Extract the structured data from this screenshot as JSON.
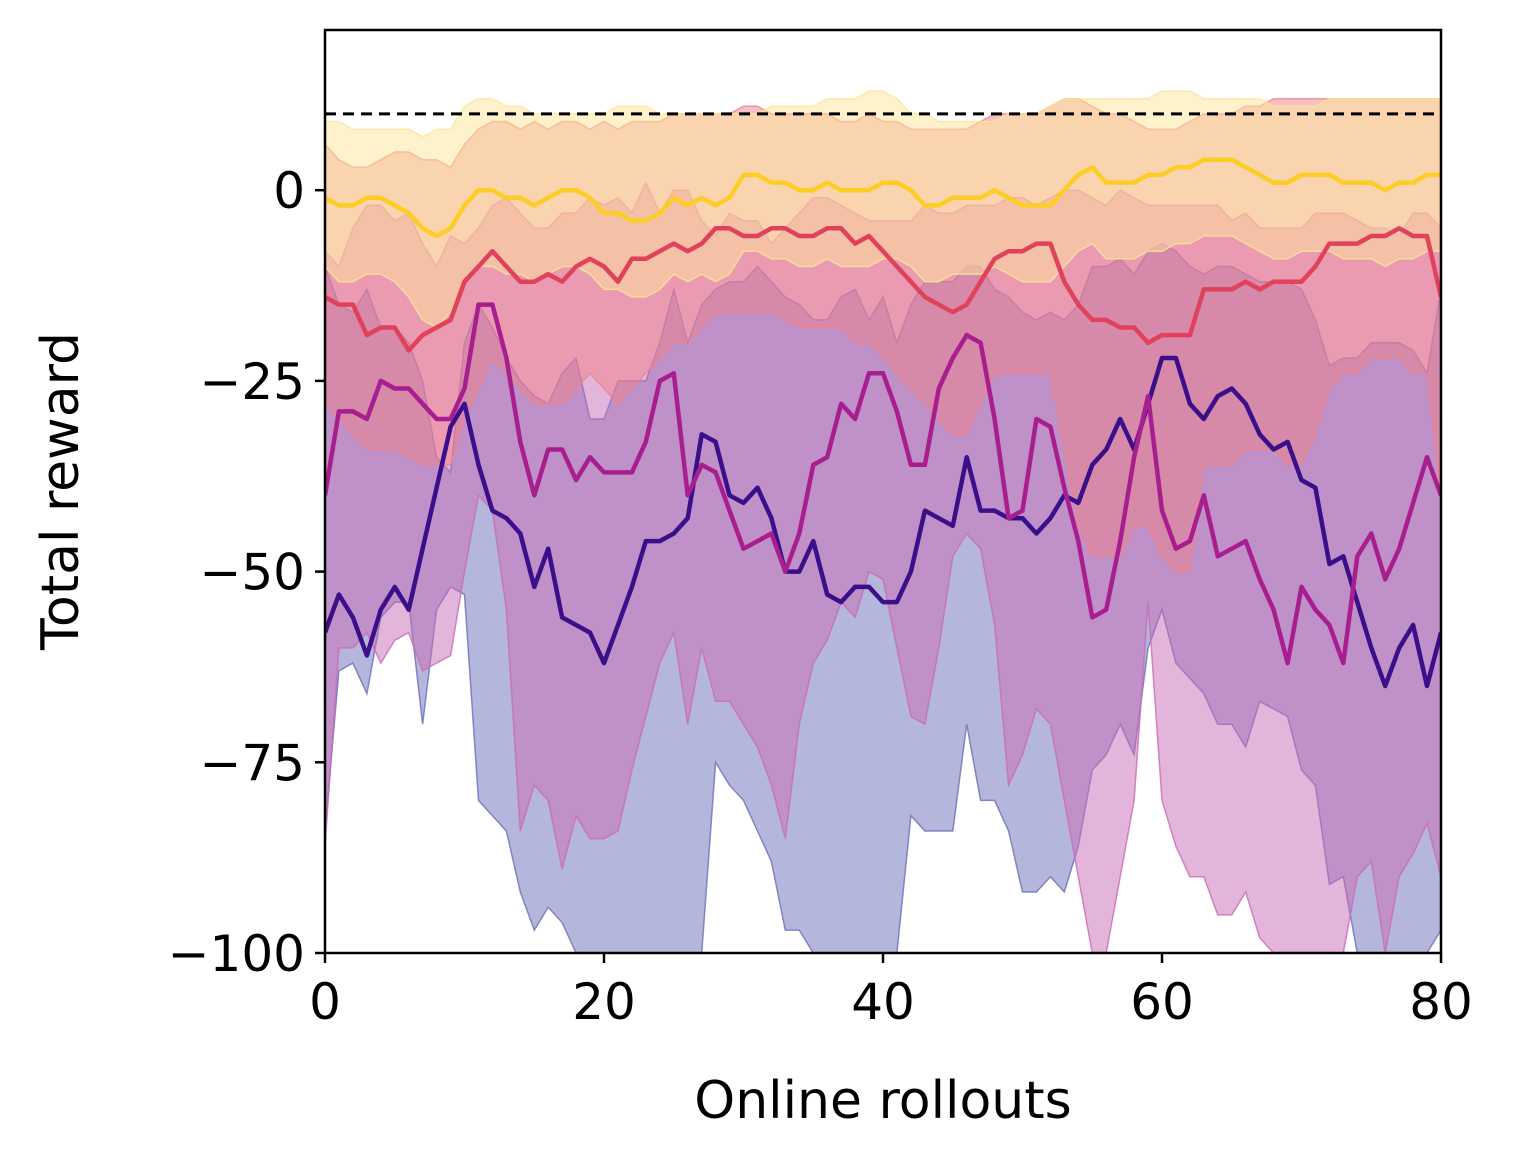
{
  "chart_data": {
    "type": "line",
    "title": "",
    "xlabel": "Online rollouts",
    "ylabel": "Total reward",
    "xlim": [
      0,
      80
    ],
    "ylim": [
      -100,
      21
    ],
    "xticks": [
      0,
      20,
      40,
      60,
      80
    ],
    "yticks": [
      -100,
      -75,
      -50,
      -25,
      0
    ],
    "xtick_labels": [
      "0",
      "20",
      "40",
      "60",
      "80"
    ],
    "ytick_labels": [
      "−100",
      "−75",
      "−50",
      "−25",
      "0"
    ],
    "grid": false,
    "legend": "none",
    "reference_line": {
      "y": 10,
      "style": "dashed",
      "color": "#000000"
    },
    "x": [
      0,
      1,
      2,
      3,
      4,
      5,
      6,
      7,
      8,
      9,
      10,
      11,
      12,
      13,
      14,
      15,
      16,
      17,
      18,
      19,
      20,
      21,
      22,
      23,
      24,
      25,
      26,
      27,
      28,
      29,
      30,
      31,
      32,
      33,
      34,
      35,
      36,
      37,
      38,
      39,
      40,
      41,
      42,
      43,
      44,
      45,
      46,
      47,
      48,
      49,
      50,
      51,
      52,
      53,
      54,
      55,
      56,
      57,
      58,
      59,
      60,
      61,
      62,
      63,
      64,
      65,
      66,
      67,
      68,
      69,
      70,
      71,
      72,
      73,
      74,
      75,
      76,
      77,
      78,
      79,
      80
    ],
    "series": [
      {
        "color": "#3b0f8a",
        "band_color": "#6a6fb8",
        "mean": [
          -58,
          -53,
          -56,
          -61,
          -55,
          -52,
          -55,
          -47,
          -39,
          -31,
          -28,
          -36,
          -42,
          -43,
          -45,
          -52,
          -47,
          -56,
          -57,
          -58,
          -62,
          -57,
          -52,
          -46,
          -46,
          -45,
          -43,
          -32,
          -33,
          -40,
          -41,
          -39,
          -43,
          -50,
          -50,
          -46,
          -53,
          -54,
          -52,
          -52,
          -54,
          -54,
          -50,
          -42,
          -43,
          -44,
          -35,
          -42,
          -42,
          -43,
          -43,
          -45,
          -43,
          -40,
          -41,
          -36,
          -34,
          -30,
          -34,
          -28,
          -22,
          -22,
          -28,
          -30,
          -27,
          -26,
          -28,
          -32,
          -34,
          -33,
          -38,
          -39,
          -49,
          -48,
          -54,
          -60,
          -65,
          -60,
          -57,
          -65,
          -58
        ],
        "upper": [
          -10,
          -15,
          -16,
          -13,
          -18,
          -18,
          -20,
          -25,
          -35,
          -37,
          -20,
          -15,
          -18,
          -22,
          -25,
          -27,
          -28,
          -24,
          -22,
          -30,
          -30,
          -25,
          -25,
          -25,
          -20,
          -13,
          -20,
          -15,
          -13,
          -12,
          -12,
          -10,
          -12,
          -14,
          -15,
          -17,
          -17,
          -14,
          -13,
          -17,
          -14,
          -20,
          -15,
          -12,
          -12,
          -12,
          -10,
          -10,
          -13,
          -14,
          -16,
          -17,
          -16,
          -17,
          -15,
          -10,
          -10,
          -9,
          -11,
          -8,
          -7,
          -8,
          -10,
          -11,
          -10,
          -10,
          -11,
          -12,
          -12,
          -12,
          -13,
          -17,
          -23,
          -22,
          -22,
          -20,
          -20,
          -20,
          -21,
          -24,
          -13
        ],
        "lower": [
          -84,
          -63,
          -62,
          -66,
          -56,
          -54,
          -54,
          -70,
          -55,
          -52,
          -53,
          -80,
          -82,
          -84,
          -92,
          -97,
          -94,
          -96,
          -100,
          -100,
          -100,
          -100,
          -100,
          -100,
          -100,
          -100,
          -100,
          -100,
          -75,
          -78,
          -80,
          -84,
          -88,
          -97,
          -97,
          -100,
          -100,
          -100,
          -100,
          -100,
          -100,
          -100,
          -82,
          -84,
          -84,
          -84,
          -70,
          -80,
          -80,
          -84,
          -92,
          -92,
          -90,
          -92,
          -86,
          -76,
          -74,
          -70,
          -74,
          -60,
          -55,
          -62,
          -64,
          -66,
          -70,
          -70,
          -73,
          -67,
          -68,
          -69,
          -76,
          -78,
          -91,
          -90,
          -100,
          -100,
          -100,
          -100,
          -100,
          -100,
          -97
        ]
      },
      {
        "color": "#a81e8e",
        "band_color": "#c96bb6",
        "mean": [
          -40,
          -29,
          -29,
          -30,
          -25,
          -26,
          -26,
          -28,
          -30,
          -30,
          -26,
          -15,
          -15,
          -22,
          -33,
          -40,
          -34,
          -34,
          -38,
          -35,
          -37,
          -37,
          -37,
          -33,
          -25,
          -24,
          -40,
          -36,
          -37,
          -42,
          -47,
          -46,
          -45,
          -50,
          -45,
          -36,
          -35,
          -28,
          -30,
          -24,
          -24,
          -29,
          -36,
          -36,
          -26,
          -22,
          -19,
          -20,
          -30,
          -43,
          -42,
          -30,
          -31,
          -39,
          -46,
          -56,
          -55,
          -46,
          -35,
          -27,
          -42,
          -47,
          -46,
          -40,
          -48,
          -47,
          -46,
          -51,
          -55,
          -62,
          -52,
          -55,
          -57,
          -62,
          -48,
          -45,
          -51,
          -47,
          -41,
          -35,
          -40
        ],
        "upper": [
          -8,
          -10,
          -5,
          -2,
          -2,
          -4,
          -3,
          -7,
          -10,
          -6,
          -7,
          -5,
          -2,
          -1,
          -3,
          -5,
          -5,
          -3,
          -3,
          -1,
          -2,
          -1,
          -3,
          1,
          -3,
          0,
          0,
          -4,
          -6,
          -3,
          -4,
          -4,
          -7,
          -5,
          -3,
          -1,
          -1,
          -2,
          -3,
          -4,
          -4,
          -4,
          -4,
          -2,
          -3,
          -3,
          -2,
          -2,
          -2,
          -1,
          -1,
          -2,
          -1,
          0,
          0,
          -1,
          -2,
          0,
          -1,
          -2,
          -2,
          -2,
          -2,
          -2,
          -2,
          -4,
          -3,
          -5,
          -5,
          -5,
          -5,
          -3,
          -3,
          -3,
          -4,
          -5,
          -5,
          -6,
          -3,
          -3,
          -5
        ],
        "lower": [
          -86,
          -60,
          -60,
          -58,
          -62,
          -59,
          -58,
          -63,
          -62,
          -61,
          -50,
          -40,
          -42,
          -55,
          -84,
          -78,
          -80,
          -89,
          -82,
          -85,
          -85,
          -84,
          -76,
          -69,
          -62,
          -58,
          -70,
          -60,
          -67,
          -67,
          -70,
          -73,
          -78,
          -85,
          -70,
          -62,
          -59,
          -54,
          -56,
          -50,
          -51,
          -60,
          -69,
          -70,
          -60,
          -48,
          -45,
          -47,
          -57,
          -78,
          -74,
          -68,
          -70,
          -80,
          -90,
          -100,
          -100,
          -90,
          -80,
          -54,
          -80,
          -86,
          -90,
          -90,
          -95,
          -95,
          -92,
          -98,
          -100,
          -100,
          -100,
          -100,
          -100,
          -100,
          -90,
          -88,
          -100,
          -90,
          -87,
          -83,
          -90
        ]
      },
      {
        "color": "#e0425c",
        "band_color": "#f0828a",
        "mean": [
          -14,
          -15,
          -15,
          -19,
          -18,
          -18,
          -21,
          -19,
          -18,
          -17,
          -12,
          -10,
          -8,
          -10,
          -12,
          -12,
          -11,
          -12,
          -10,
          -9,
          -10,
          -12,
          -9,
          -9,
          -8,
          -7,
          -8,
          -7,
          -5,
          -5,
          -6,
          -6,
          -5,
          -5,
          -6,
          -6,
          -5,
          -5,
          -7,
          -6,
          -8,
          -10,
          -12,
          -14,
          -15,
          -16,
          -15,
          -12,
          -9,
          -8,
          -8,
          -7,
          -7,
          -12,
          -15,
          -17,
          -17,
          -18,
          -18,
          -20,
          -19,
          -19,
          -19,
          -13,
          -13,
          -13,
          -12,
          -13,
          -12,
          -12,
          -12,
          -10,
          -7,
          -7,
          -7,
          -6,
          -6,
          -5,
          -6,
          -6,
          -14
        ],
        "upper": [
          6,
          4,
          3,
          3,
          4,
          5,
          5,
          4,
          4,
          3,
          6,
          8,
          9,
          9,
          8,
          9,
          8,
          9,
          9,
          8,
          9,
          8,
          9,
          9,
          9,
          10,
          10,
          10,
          10,
          10,
          11,
          11,
          10,
          10,
          10,
          10,
          10,
          9,
          9,
          10,
          9,
          9,
          8,
          8,
          8,
          8,
          8,
          9,
          10,
          10,
          10,
          10,
          11,
          12,
          12,
          11,
          10,
          10,
          9,
          8,
          8,
          8,
          9,
          10,
          10,
          10,
          11,
          11,
          12,
          12,
          12,
          12,
          12,
          12,
          12,
          12,
          12,
          12,
          12,
          12,
          12
        ],
        "lower": [
          -28,
          -30,
          -32,
          -34,
          -34,
          -34,
          -35,
          -36,
          -36,
          -36,
          -30,
          -26,
          -22,
          -24,
          -26,
          -28,
          -28,
          -28,
          -26,
          -24,
          -26,
          -28,
          -26,
          -24,
          -22,
          -20,
          -20,
          -18,
          -16,
          -16,
          -16,
          -16,
          -16,
          -17,
          -18,
          -18,
          -18,
          -18,
          -20,
          -20,
          -22,
          -24,
          -26,
          -28,
          -30,
          -32,
          -32,
          -28,
          -24,
          -24,
          -24,
          -24,
          -24,
          -34,
          -44,
          -48,
          -48,
          -48,
          -44,
          -44,
          -48,
          -50,
          -50,
          -36,
          -36,
          -36,
          -34,
          -34,
          -34,
          -36,
          -36,
          -32,
          -26,
          -24,
          -24,
          -22,
          -22,
          -22,
          -24,
          -24,
          -40
        ]
      },
      {
        "color": "#fccd25",
        "band_color": "#fde59a",
        "mean": [
          -1,
          -2,
          -2,
          -1,
          -1,
          -2,
          -3,
          -5,
          -6,
          -5,
          -2,
          0,
          0,
          -1,
          -1,
          -2,
          -1,
          0,
          0,
          -1,
          -3,
          -3,
          -4,
          -4,
          -3,
          -1,
          -2,
          -1,
          -2,
          -1,
          2,
          2,
          1,
          1,
          0,
          0,
          1,
          0,
          0,
          0,
          1,
          1,
          0,
          -2,
          -2,
          -1,
          -1,
          -1,
          0,
          -1,
          -2,
          -2,
          -2,
          0,
          2,
          3,
          1,
          1,
          1,
          2,
          2,
          3,
          3,
          4,
          4,
          4,
          3,
          2,
          1,
          1,
          2,
          2,
          2,
          1,
          1,
          1,
          0,
          1,
          1,
          2,
          2
        ],
        "upper": [
          9,
          9,
          8,
          8,
          8,
          8,
          8,
          7,
          8,
          8,
          11,
          12,
          12,
          11,
          11,
          10,
          10,
          10,
          10,
          10,
          10,
          11,
          11,
          11,
          10,
          10,
          10,
          10,
          10,
          10,
          10,
          10,
          11,
          11,
          11,
          11,
          12,
          12,
          12,
          13,
          13,
          12,
          10,
          10,
          9,
          9,
          9,
          9,
          9,
          10,
          10,
          10,
          11,
          12,
          12,
          12,
          12,
          12,
          12,
          12,
          13,
          13,
          13,
          12,
          12,
          12,
          12,
          12,
          11,
          11,
          11,
          11,
          12,
          12,
          12,
          12,
          12,
          12,
          12,
          12,
          12
        ],
        "lower": [
          -10,
          -12,
          -12,
          -11,
          -11,
          -12,
          -14,
          -17,
          -18,
          -16,
          -12,
          -10,
          -10,
          -11,
          -11,
          -12,
          -11,
          -10,
          -10,
          -11,
          -13,
          -13,
          -14,
          -14,
          -13,
          -11,
          -12,
          -11,
          -12,
          -11,
          -8,
          -8,
          -9,
          -9,
          -10,
          -10,
          -9,
          -10,
          -10,
          -10,
          -9,
          -9,
          -10,
          -12,
          -12,
          -11,
          -11,
          -11,
          -10,
          -11,
          -12,
          -12,
          -12,
          -10,
          -8,
          -7,
          -9,
          -9,
          -9,
          -8,
          -8,
          -7,
          -7,
          -6,
          -6,
          -6,
          -7,
          -8,
          -9,
          -9,
          -8,
          -8,
          -8,
          -9,
          -9,
          -9,
          -10,
          -9,
          -9,
          -8,
          -8
        ]
      }
    ]
  }
}
